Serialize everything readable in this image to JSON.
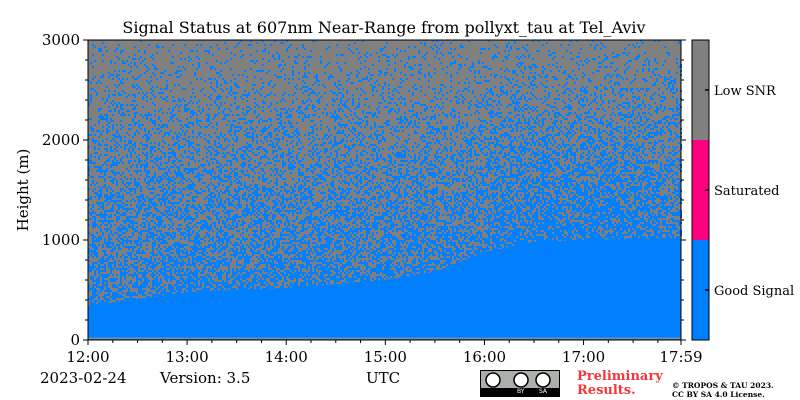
{
  "chart_data": {
    "type": "heatmap",
    "title": "Signal Status at 607nm Near-Range from pollyxt_tau at Tel_Aviv",
    "xlabel": "UTC",
    "ylabel": "Height (m)",
    "x_range": [
      "12:00",
      "17:59"
    ],
    "x_ticks": [
      "12:00",
      "13:00",
      "14:00",
      "15:00",
      "16:00",
      "17:00",
      "17:59"
    ],
    "y_range": [
      0,
      3000
    ],
    "y_ticks": [
      0,
      1000,
      2000,
      3000
    ],
    "categories": [
      {
        "label": "Good Signal",
        "color": "#0080ff"
      },
      {
        "label": "Saturated",
        "color": "#ff0080"
      },
      {
        "label": "Low SNR",
        "color": "#808080"
      }
    ],
    "solid_good_signal_top_m": [
      {
        "time": "12:00",
        "height": 340
      },
      {
        "time": "13:00",
        "height": 480
      },
      {
        "time": "14:00",
        "height": 520
      },
      {
        "time": "15:00",
        "height": 600
      },
      {
        "time": "15:30",
        "height": 680
      },
      {
        "time": "16:00",
        "height": 880
      },
      {
        "time": "16:30",
        "height": 980
      },
      {
        "time": "17:00",
        "height": 1000
      },
      {
        "time": "17:59",
        "height": 1020
      }
    ]
  },
  "footer": {
    "date": "2023-02-24",
    "version": "Version: 3.5",
    "preliminary_line1": "Preliminary",
    "preliminary_line2": "Results.",
    "copyright_line1": "© TROPOS & TAU 2023.",
    "copyright_line2": "CC BY SA 4.0 License.",
    "license_badge": [
      "BY",
      "SA"
    ]
  },
  "colors": {
    "good_signal": "#0080ff",
    "saturated": "#ff0080",
    "low_snr": "#808080",
    "preliminary_text": "#f0383d"
  }
}
